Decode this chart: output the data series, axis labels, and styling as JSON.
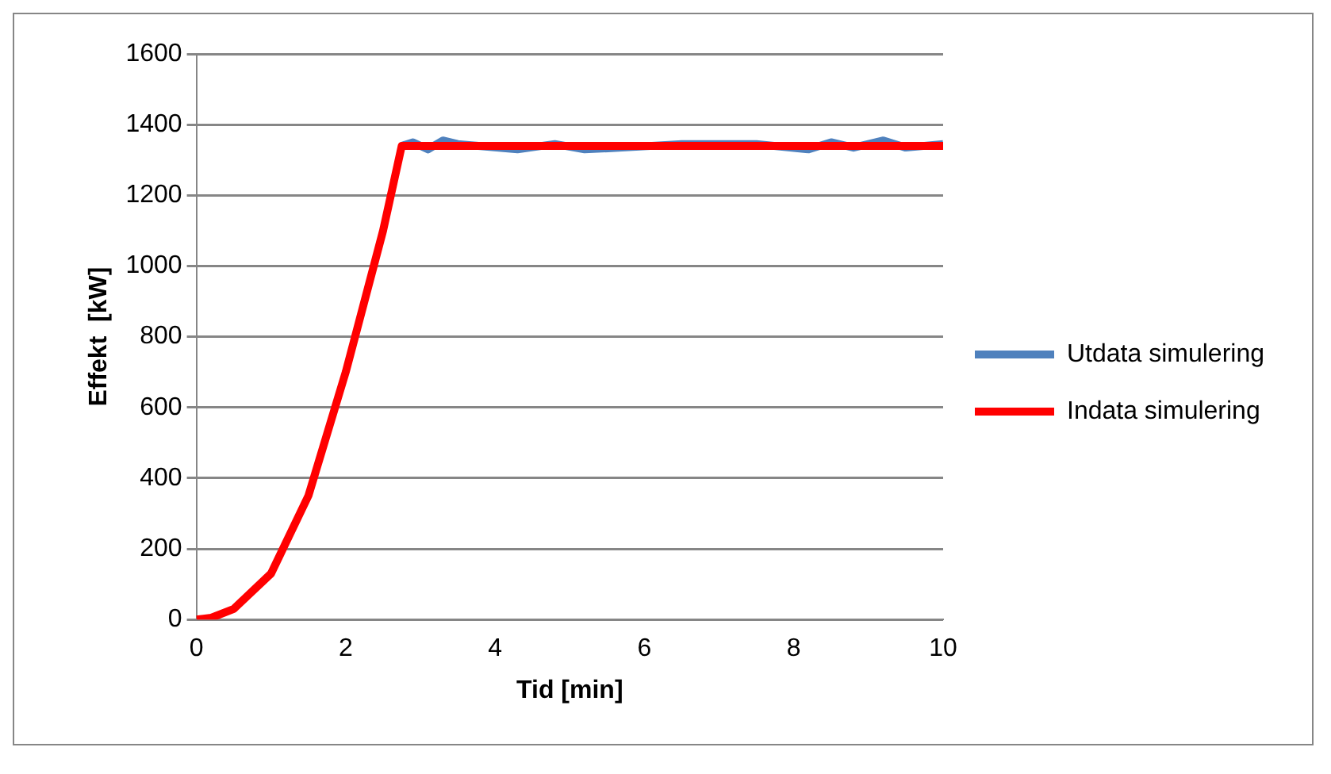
{
  "chart_data": {
    "type": "line",
    "xlabel": "Tid [min]",
    "ylabel": "Effekt  [kW]",
    "xlim": [
      0,
      10
    ],
    "xticks": [
      0,
      2,
      4,
      6,
      8,
      10
    ],
    "ylim": [
      0,
      1600
    ],
    "yticks": [
      0,
      200,
      400,
      600,
      800,
      1000,
      1200,
      1400,
      1600
    ],
    "grid": "y",
    "legend": "right",
    "marker": "none",
    "line_style": "solid",
    "series": [
      {
        "name": "Utdata simulering",
        "color": "#4f81bd",
        "x": [
          2.75,
          2.9,
          3.1,
          3.3,
          3.5,
          4.3,
          4.8,
          5.2,
          5.7,
          6.5,
          7.5,
          8.2,
          8.5,
          8.8,
          9.2,
          9.5,
          10
        ],
        "values": [
          1340,
          1350,
          1330,
          1355,
          1345,
          1330,
          1345,
          1330,
          1335,
          1345,
          1345,
          1330,
          1350,
          1335,
          1355,
          1335,
          1345
        ]
      },
      {
        "name": "Indata simulering",
        "color": "#ff0000",
        "x": [
          0,
          0.2,
          0.5,
          1,
          1.5,
          2,
          2.5,
          2.75,
          10
        ],
        "values": [
          0,
          5,
          30,
          130,
          350,
          700,
          1100,
          1340,
          1340
        ]
      }
    ]
  }
}
